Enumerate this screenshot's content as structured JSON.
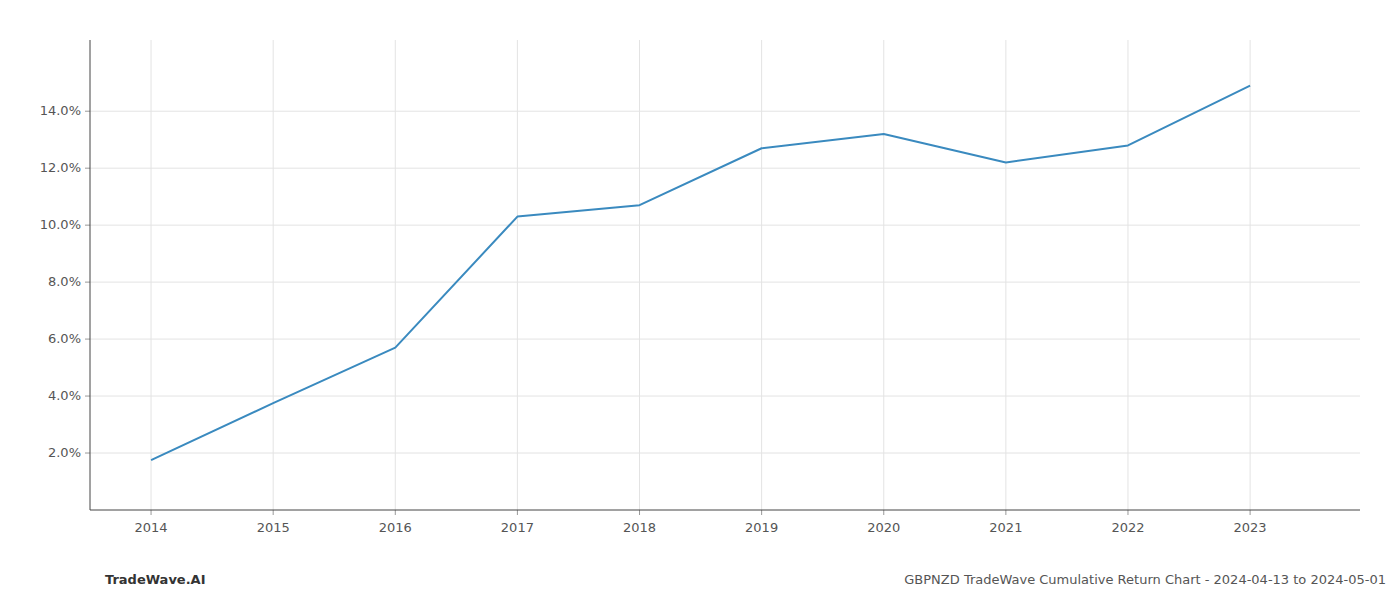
{
  "chart_data": {
    "type": "line",
    "x": [
      2014,
      2015,
      2016,
      2017,
      2018,
      2019,
      2020,
      2021,
      2022,
      2023
    ],
    "values": [
      1.75,
      3.75,
      5.7,
      10.3,
      10.7,
      12.7,
      13.2,
      12.2,
      12.8,
      14.9
    ],
    "color": "#3a8abf",
    "xlim": [
      2013.5,
      2023.9
    ],
    "xticks": [
      2014,
      2015,
      2016,
      2017,
      2018,
      2019,
      2020,
      2021,
      2022,
      2023
    ],
    "ylim": [
      0,
      16.5
    ],
    "yticks": [
      {
        "value": 2.0,
        "label": "2.0%"
      },
      {
        "value": 4.0,
        "label": "4.0%"
      },
      {
        "value": 6.0,
        "label": "6.0%"
      },
      {
        "value": 8.0,
        "label": "8.0%"
      },
      {
        "value": 10.0,
        "label": "10.0%"
      },
      {
        "value": 12.0,
        "label": "12.0%"
      },
      {
        "value": 14.0,
        "label": "14.0%"
      }
    ],
    "grid": true,
    "annotations": [
      "TradeWave.AI",
      "GBPNZD TradeWave Cumulative Return Chart - 2024-04-13 to 2024-05-01"
    ]
  }
}
